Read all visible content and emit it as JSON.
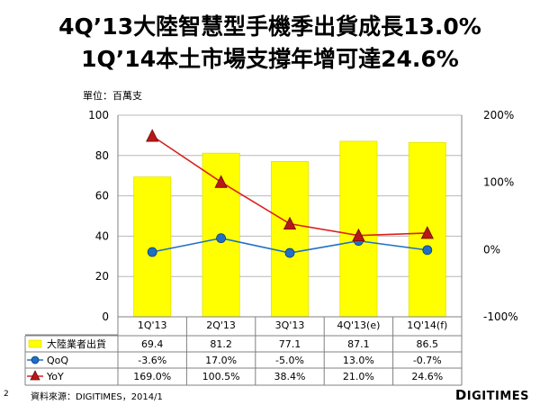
{
  "title_line1": "4Q’13大陸智慧型手機季出貨成長13.0%",
  "title_line2": "1Q’14本土市場支撐年增可達24.6%",
  "unit_label": "單位：百萬支",
  "page_number": "2",
  "source": "資料來源：DIGITIMES，2014/1",
  "brand_first": "D",
  "brand_rest": "IGITIMES",
  "colors": {
    "bar": "#ffff00",
    "bar_stroke": "#d8d800",
    "qoq": "#1f6fc5",
    "yoy": "#d92020",
    "grid": "#b8b8b8"
  },
  "chart_data": {
    "type": "bar",
    "categories": [
      "1Q'13",
      "2Q'13",
      "3Q'13",
      "4Q'13(e)",
      "1Q'14(f)"
    ],
    "ylim": [
      0,
      100
    ],
    "yticks": [
      "0",
      "20",
      "40",
      "60",
      "80",
      "100"
    ],
    "y2lim": [
      -100,
      200
    ],
    "y2ticks": [
      "-100%",
      "0%",
      "100%",
      "200%"
    ],
    "grid": true,
    "series": [
      {
        "name": "大陸業者出貨",
        "kind": "bar",
        "axis": "left",
        "values": [
          69.4,
          81.2,
          77.1,
          87.1,
          86.5
        ],
        "labels": [
          "69.4",
          "81.2",
          "77.1",
          "87.1",
          "86.5"
        ]
      },
      {
        "name": "QoQ",
        "kind": "line",
        "marker": "circle",
        "axis": "right",
        "values": [
          -3.6,
          17.0,
          -5.0,
          13.0,
          -0.7
        ],
        "labels": [
          "-3.6%",
          "17.0%",
          "-5.0%",
          "13.0%",
          "-0.7%"
        ]
      },
      {
        "name": "YoY",
        "kind": "line",
        "marker": "triangle",
        "axis": "right",
        "values": [
          169.0,
          100.5,
          38.4,
          21.0,
          24.6
        ],
        "labels": [
          "169.0%",
          "100.5%",
          "38.4%",
          "21.0%",
          "24.6%"
        ]
      }
    ]
  }
}
